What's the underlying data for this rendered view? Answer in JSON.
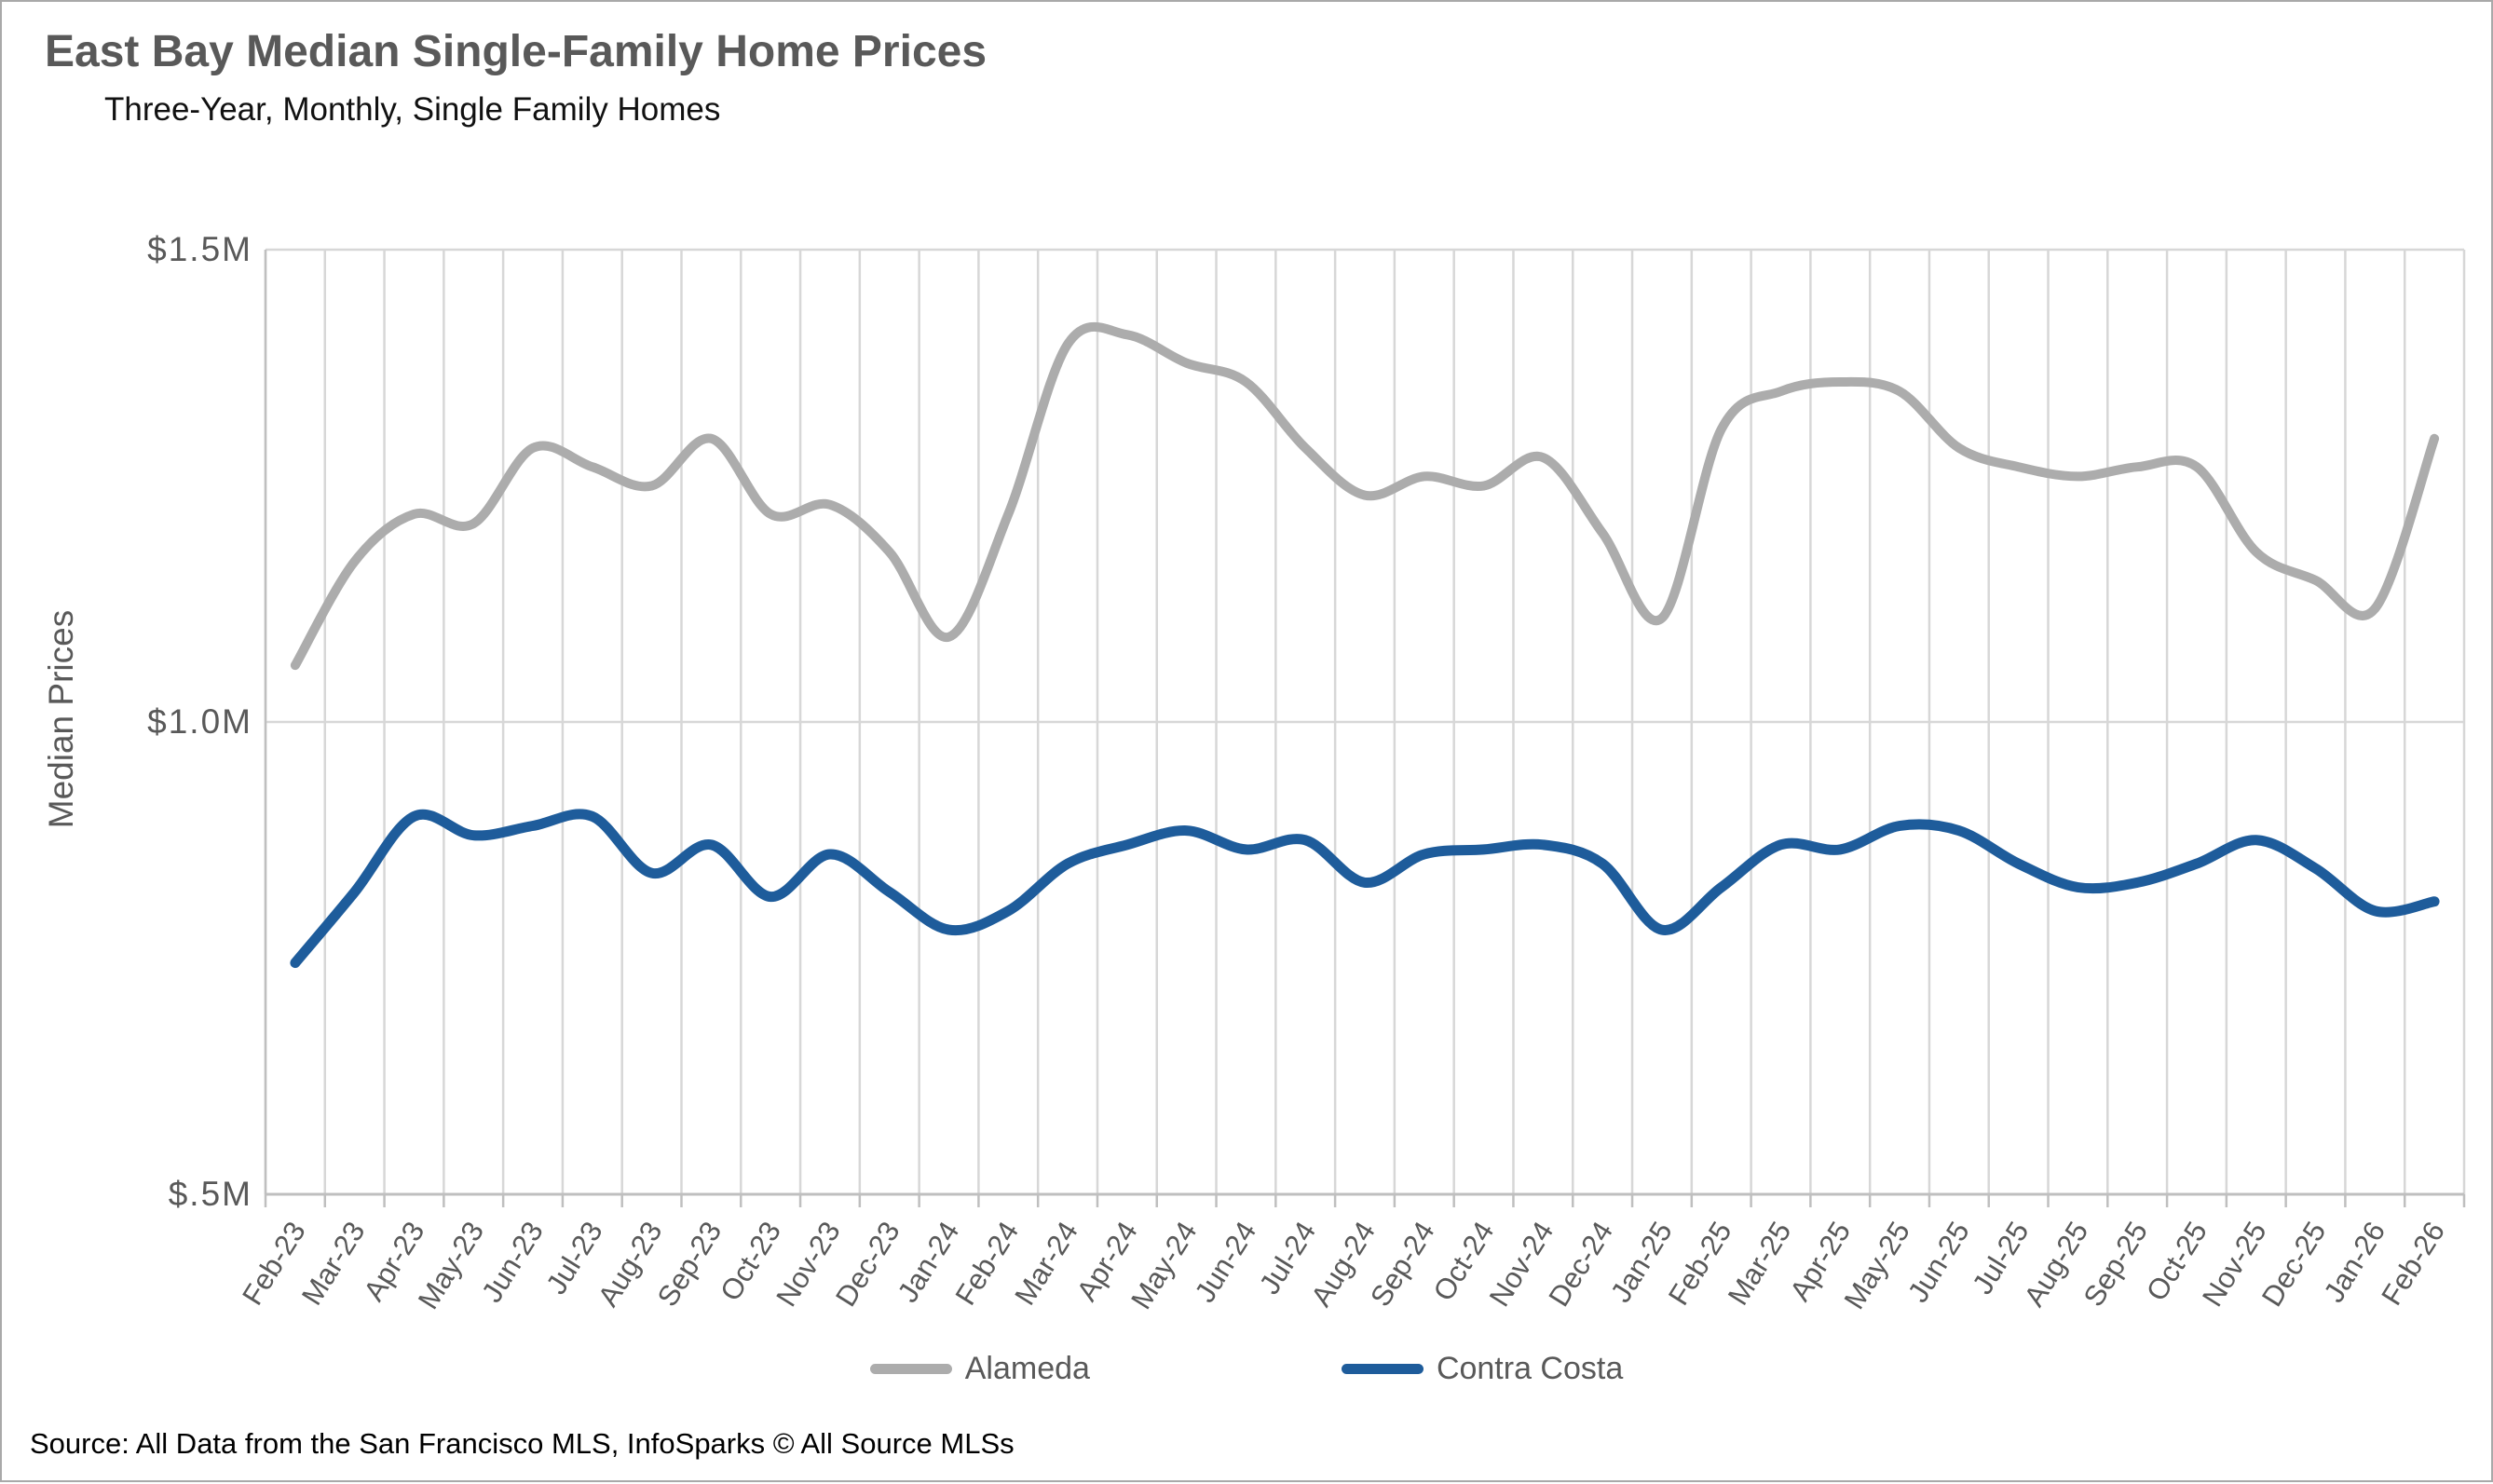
{
  "page": {
    "title": "East Bay Median Single-Family Home Prices",
    "subtitle": "Three-Year, Monthly, Single Family Homes",
    "source": "Source: All Data from the San Francisco MLS, InfoSparks © All Source MLSs"
  },
  "chart_data": {
    "type": "line",
    "title": "East Bay Median Single-Family Home Prices",
    "subtitle": "Three-Year, Monthly, Single Family Homes",
    "xlabel": "",
    "ylabel": "Median Prices",
    "ylim": [
      0.5,
      1.5
    ],
    "y_unit": "$M",
    "grid": "vertical gridline per month, horizontal gridline at $1.0M",
    "legend_position": "bottom",
    "line_style": "smoothed spline",
    "yticks": [
      {
        "value": 1.5,
        "label": "$1.5M"
      },
      {
        "value": 1.0,
        "label": "$1.0M"
      },
      {
        "value": 0.5,
        "label": "$.5M"
      }
    ],
    "categories": [
      "Feb-23",
      "Mar-23",
      "Apr-23",
      "May-23",
      "Jun-23",
      "Jul-23",
      "Aug-23",
      "Sep-23",
      "Oct-23",
      "Nov-23",
      "Dec-23",
      "Jan-24",
      "Feb-24",
      "Mar-24",
      "Apr-24",
      "May-24",
      "Jun-24",
      "Jul-24",
      "Aug-24",
      "Sep-24",
      "Oct-24",
      "Nov-24",
      "Dec-24",
      "Jan-25",
      "Feb-25",
      "Mar-25",
      "Apr-25",
      "May-25",
      "Jun-25",
      "Jul-25",
      "Aug-25",
      "Sep-25",
      "Oct-25",
      "Nov-25",
      "Dec-25",
      "Jan-26",
      "Feb-26"
    ],
    "series": [
      {
        "name": "Alameda",
        "color": "#ACACAC",
        "values_$M": [
          1.06,
          1.17,
          1.22,
          1.21,
          1.29,
          1.27,
          1.25,
          1.3,
          1.22,
          1.23,
          1.18,
          1.09,
          1.22,
          1.4,
          1.41,
          1.38,
          1.36,
          1.29,
          1.24,
          1.26,
          1.25,
          1.28,
          1.2,
          1.11,
          1.31,
          1.35,
          1.36,
          1.35,
          1.29,
          1.27,
          1.26,
          1.27,
          1.27,
          1.18,
          1.15,
          1.12,
          1.3
        ]
      },
      {
        "name": "Contra Costa",
        "color": "#1E5C9B",
        "values_$M": [
          0.745,
          0.82,
          0.9,
          0.88,
          0.89,
          0.9,
          0.84,
          0.87,
          0.815,
          0.86,
          0.82,
          0.78,
          0.8,
          0.85,
          0.87,
          0.885,
          0.865,
          0.875,
          0.83,
          0.86,
          0.865,
          0.87,
          0.85,
          0.78,
          0.825,
          0.87,
          0.865,
          0.89,
          0.885,
          0.85,
          0.825,
          0.83,
          0.85,
          0.875,
          0.845,
          0.8,
          0.81
        ]
      }
    ]
  },
  "style": {
    "gridline_color": "#D7D7D7",
    "axis_color": "#BFBFBF",
    "tick_label_color": "#595959",
    "title_color": "#595959"
  }
}
